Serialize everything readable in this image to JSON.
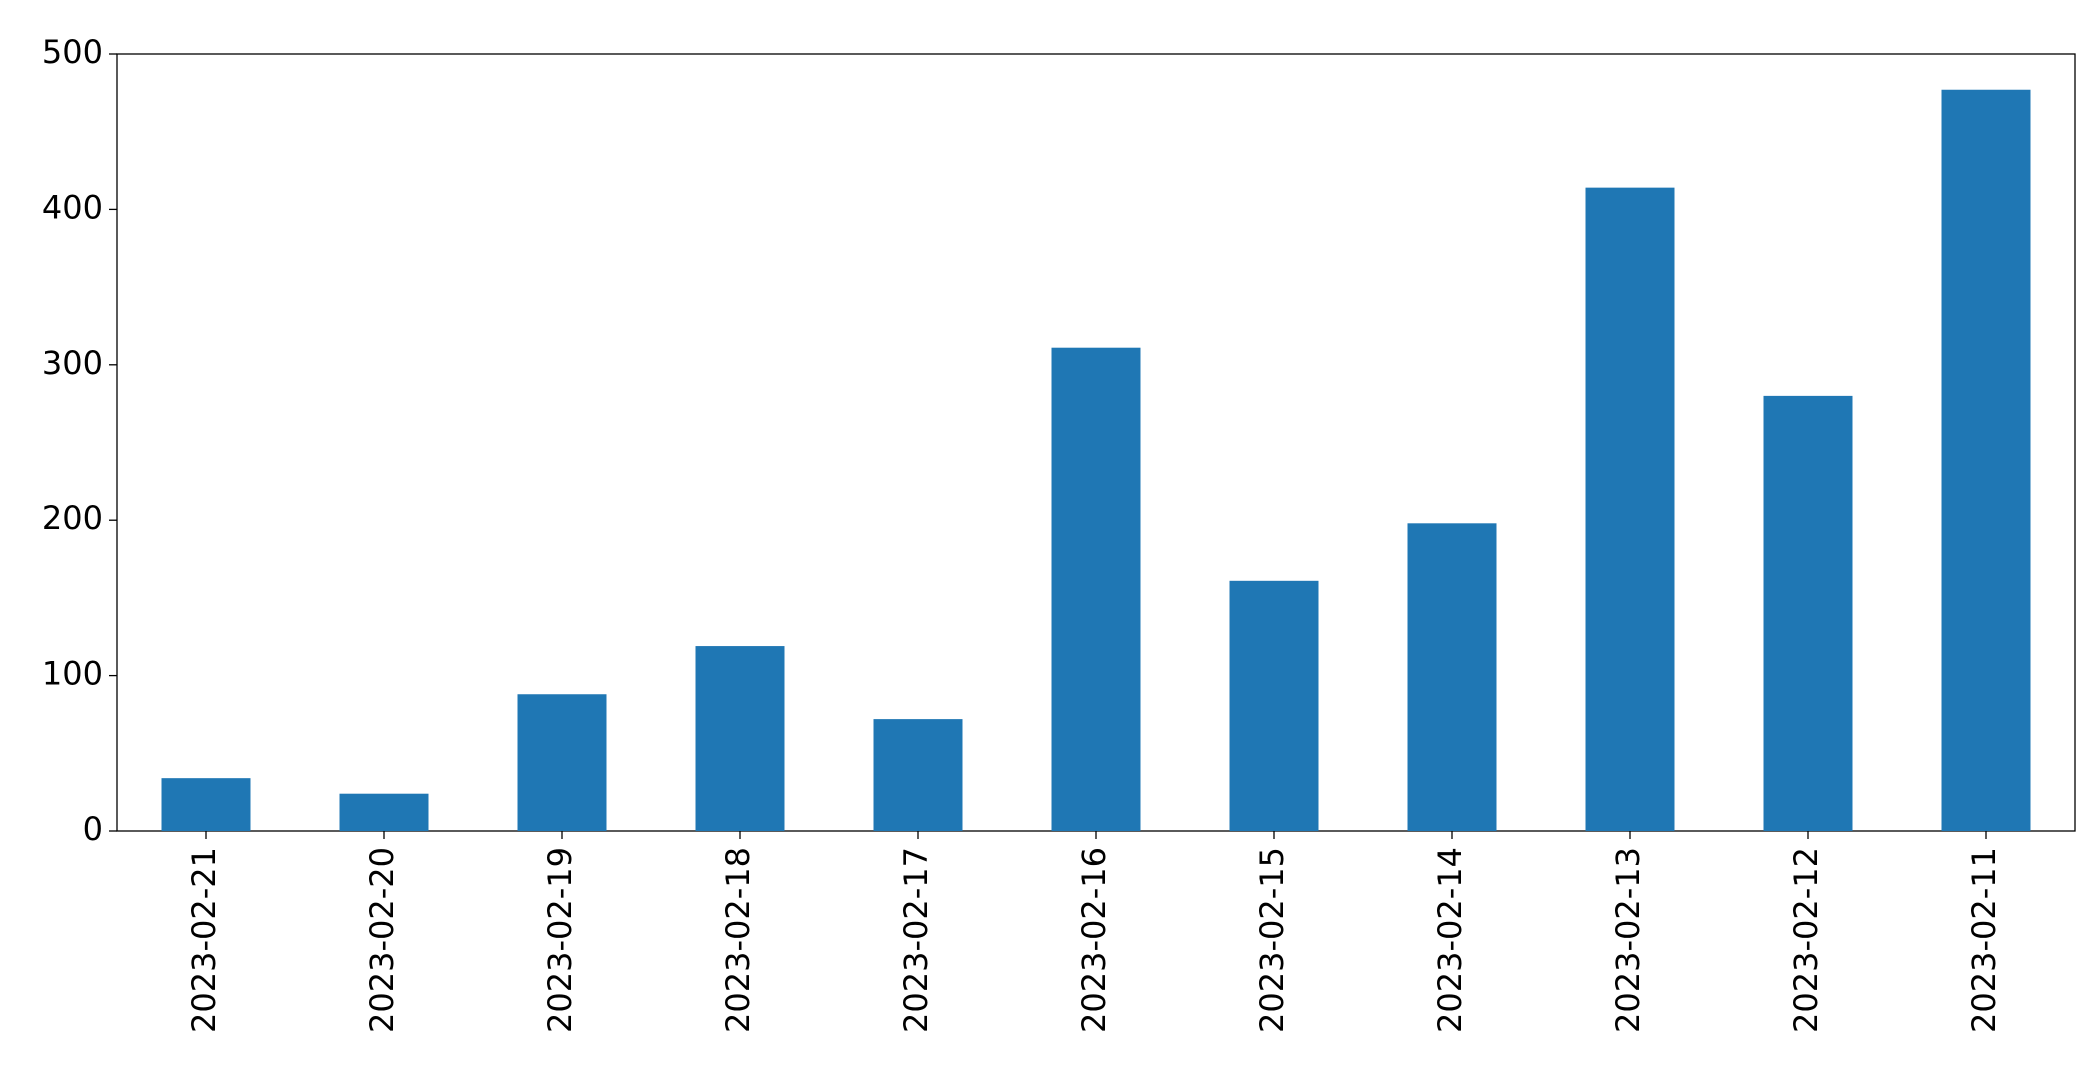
{
  "chart_data": {
    "type": "bar",
    "categories": [
      "2023-02-21",
      "2023-02-20",
      "2023-02-19",
      "2023-02-18",
      "2023-02-17",
      "2023-02-16",
      "2023-02-15",
      "2023-02-14",
      "2023-02-13",
      "2023-02-12",
      "2023-02-11"
    ],
    "values": [
      34,
      24,
      88,
      119,
      72,
      311,
      161,
      198,
      414,
      280,
      477
    ],
    "color": "#1f77b4",
    "ylim": [
      0,
      500
    ],
    "yticks": [
      0,
      100,
      200,
      300,
      400,
      500
    ],
    "grid": false
  }
}
